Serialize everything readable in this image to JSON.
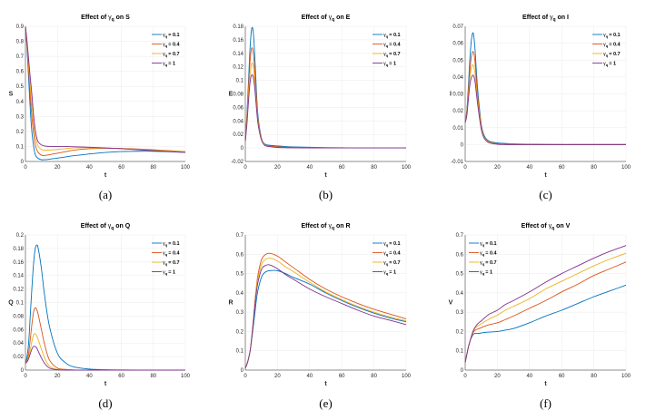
{
  "chart_data": [
    {
      "type": "line",
      "caption": "(a)",
      "title_prefix": "Effect of ",
      "symbol": "γ",
      "subscript": "q",
      "title_suffix": " on S",
      "xlabel": "t",
      "ylabel": "S",
      "xlim": [
        0,
        100
      ],
      "ylim": [
        0,
        0.9
      ],
      "xticks": [
        "0",
        "20",
        "40",
        "60",
        "80",
        "100"
      ],
      "yticks": [
        "0",
        "0.1",
        "0.2",
        "0.3",
        "0.4",
        "0.5",
        "0.6",
        "0.7",
        "0.8",
        "0.9"
      ],
      "grid": true,
      "legend_position": "top-right",
      "x": [
        0,
        1,
        2,
        3,
        4,
        5,
        6,
        7,
        8,
        10,
        12,
        15,
        20,
        25,
        30,
        40,
        50,
        60,
        70,
        80,
        90,
        100
      ],
      "series": [
        {
          "name": "= 0.1",
          "values": [
            0.9,
            0.75,
            0.55,
            0.35,
            0.2,
            0.11,
            0.05,
            0.03,
            0.02,
            0.012,
            0.012,
            0.015,
            0.022,
            0.03,
            0.038,
            0.05,
            0.06,
            0.066,
            0.068,
            0.068,
            0.065,
            0.06
          ]
        },
        {
          "name": "= 0.4",
          "values": [
            0.9,
            0.77,
            0.6,
            0.44,
            0.3,
            0.2,
            0.12,
            0.08,
            0.06,
            0.042,
            0.04,
            0.045,
            0.055,
            0.065,
            0.075,
            0.085,
            0.088,
            0.087,
            0.083,
            0.078,
            0.072,
            0.065
          ]
        },
        {
          "name": "= 0.7",
          "values": [
            0.9,
            0.79,
            0.65,
            0.5,
            0.38,
            0.26,
            0.17,
            0.13,
            0.1,
            0.08,
            0.075,
            0.076,
            0.08,
            0.085,
            0.09,
            0.092,
            0.09,
            0.085,
            0.08,
            0.075,
            0.07,
            0.063
          ]
        },
        {
          "name": "= 1",
          "values": [
            0.9,
            0.8,
            0.68,
            0.56,
            0.45,
            0.32,
            0.22,
            0.16,
            0.13,
            0.11,
            0.103,
            0.1,
            0.1,
            0.1,
            0.098,
            0.095,
            0.09,
            0.085,
            0.078,
            0.072,
            0.066,
            0.06
          ]
        }
      ]
    },
    {
      "type": "line",
      "caption": "(b)",
      "title_prefix": "Effect of ",
      "symbol": "γ",
      "subscript": "q",
      "title_suffix": " on E",
      "xlabel": "t",
      "ylabel": "E",
      "xlim": [
        0,
        100
      ],
      "ylim": [
        -0.02,
        0.18
      ],
      "xticks": [
        "0",
        "20",
        "40",
        "60",
        "80",
        "100"
      ],
      "yticks": [
        "-0.02",
        "0",
        "0.02",
        "0.04",
        "0.06",
        "0.08",
        "0.1",
        "0.12",
        "0.14",
        "0.16",
        "0.18"
      ],
      "grid": true,
      "legend_position": "top-right",
      "x": [
        0,
        1,
        2,
        3,
        4,
        5,
        6,
        7,
        8,
        10,
        12,
        15,
        20,
        25,
        30,
        40,
        50,
        60,
        70,
        80,
        90,
        100
      ],
      "series": [
        {
          "name": "= 0.1",
          "values": [
            0.01,
            0.05,
            0.1,
            0.15,
            0.177,
            0.17,
            0.13,
            0.08,
            0.045,
            0.015,
            0.006,
            0.004,
            0.003,
            0.002,
            0.0015,
            0.001,
            0.0005,
            0.0003,
            0.0002,
            0.0001,
            0,
            0
          ]
        },
        {
          "name": "= 0.4",
          "values": [
            0.01,
            0.045,
            0.09,
            0.13,
            0.148,
            0.14,
            0.11,
            0.07,
            0.04,
            0.014,
            0.005,
            0.003,
            0.002,
            0.001,
            0.001,
            0.0005,
            0.0002,
            0.0001,
            0,
            0,
            0,
            0
          ]
        },
        {
          "name": "= 0.7",
          "values": [
            0.01,
            0.04,
            0.08,
            0.11,
            0.125,
            0.12,
            0.095,
            0.062,
            0.037,
            0.013,
            0.005,
            0.002,
            0.001,
            0.0005,
            0.0003,
            0.0001,
            0,
            0,
            0,
            0,
            0,
            0
          ]
        },
        {
          "name": "= 1",
          "values": [
            0.01,
            0.035,
            0.07,
            0.098,
            0.108,
            0.104,
            0.085,
            0.057,
            0.034,
            0.012,
            0.004,
            0.002,
            0.0008,
            0.0004,
            0.0002,
            0,
            0,
            0,
            0,
            0,
            0,
            0
          ]
        }
      ]
    },
    {
      "type": "line",
      "caption": "(c)",
      "title_prefix": "Effect of ",
      "symbol": "γ",
      "subscript": "q",
      "title_suffix": " on I",
      "xlabel": "t",
      "ylabel": "I",
      "xlim": [
        0,
        100
      ],
      "ylim": [
        -0.01,
        0.07
      ],
      "xticks": [
        "0",
        "20",
        "40",
        "60",
        "80",
        "100"
      ],
      "yticks": [
        "-0.01",
        "0",
        "0.01",
        "0.02",
        "0.03",
        "0.04",
        "0.05",
        "0.06",
        "0.07"
      ],
      "grid": true,
      "legend_position": "top-right",
      "x": [
        0,
        1,
        2,
        3,
        4,
        5,
        6,
        7,
        8,
        10,
        12,
        15,
        20,
        25,
        30,
        40,
        50,
        60,
        70,
        80,
        90,
        100
      ],
      "series": [
        {
          "name": "= 0.1",
          "values": [
            0.013,
            0.02,
            0.035,
            0.052,
            0.063,
            0.066,
            0.058,
            0.043,
            0.03,
            0.012,
            0.005,
            0.002,
            0.001,
            0.0007,
            0.0004,
            0.0002,
            0.0001,
            0,
            0,
            0,
            0,
            0
          ]
        },
        {
          "name": "= 0.4",
          "values": [
            0.013,
            0.019,
            0.032,
            0.045,
            0.053,
            0.055,
            0.05,
            0.038,
            0.027,
            0.011,
            0.004,
            0.0015,
            0.0005,
            0.0003,
            0.0002,
            0.0001,
            0,
            0,
            0,
            0,
            0,
            0
          ]
        },
        {
          "name": "= 0.7",
          "values": [
            0.013,
            0.018,
            0.029,
            0.04,
            0.046,
            0.047,
            0.043,
            0.033,
            0.024,
            0.01,
            0.004,
            0.0013,
            0.0003,
            0.0001,
            0,
            0,
            0,
            0,
            0,
            0,
            0,
            0
          ]
        },
        {
          "name": "= 1",
          "values": [
            0.013,
            0.017,
            0.027,
            0.036,
            0.04,
            0.041,
            0.038,
            0.03,
            0.022,
            0.009,
            0.0035,
            0.001,
            0.0002,
            0,
            0,
            0,
            0,
            0,
            0,
            0,
            0,
            0
          ]
        }
      ]
    },
    {
      "type": "line",
      "caption": "(d)",
      "title_prefix": "Effect of ",
      "symbol": "γ",
      "subscript": "q",
      "title_suffix": " on Q",
      "xlabel": "t",
      "ylabel": "Q",
      "xlim": [
        0,
        100
      ],
      "ylim": [
        0,
        0.2
      ],
      "xticks": [
        "0",
        "20",
        "40",
        "60",
        "80",
        "100"
      ],
      "yticks": [
        "0",
        "0.02",
        "0.04",
        "0.06",
        "0.08",
        "0.1",
        "0.12",
        "0.14",
        "0.16",
        "0.18",
        "0.2"
      ],
      "grid": true,
      "legend_position": "top-right",
      "x": [
        0,
        1,
        2,
        3,
        4,
        5,
        6,
        7,
        8,
        10,
        12,
        15,
        20,
        25,
        30,
        40,
        50,
        60,
        70,
        80,
        90,
        100
      ],
      "series": [
        {
          "name": "= 0.1",
          "values": [
            0.01,
            0.02,
            0.04,
            0.08,
            0.12,
            0.155,
            0.178,
            0.185,
            0.18,
            0.15,
            0.11,
            0.065,
            0.025,
            0.011,
            0.005,
            0.0015,
            0.0005,
            0.0002,
            0,
            0,
            0,
            0
          ]
        },
        {
          "name": "= 0.4",
          "values": [
            0.01,
            0.015,
            0.025,
            0.045,
            0.067,
            0.085,
            0.092,
            0.09,
            0.082,
            0.06,
            0.038,
            0.015,
            0.003,
            0.001,
            0.0003,
            0,
            0,
            0,
            0,
            0,
            0,
            0
          ]
        },
        {
          "name": "= 0.7",
          "values": [
            0.01,
            0.013,
            0.02,
            0.03,
            0.042,
            0.052,
            0.054,
            0.051,
            0.045,
            0.031,
            0.018,
            0.006,
            0.001,
            0.0003,
            0,
            0,
            0,
            0,
            0,
            0,
            0,
            0
          ]
        },
        {
          "name": "= 1",
          "values": [
            0.01,
            0.012,
            0.017,
            0.024,
            0.031,
            0.035,
            0.035,
            0.033,
            0.028,
            0.018,
            0.01,
            0.003,
            0.0005,
            0,
            0,
            0,
            0,
            0,
            0,
            0,
            0,
            0
          ]
        }
      ]
    },
    {
      "type": "line",
      "caption": "(e)",
      "title_prefix": "Effect of ",
      "symbol": "γ",
      "subscript": "q",
      "title_suffix": " on R",
      "xlabel": "t",
      "ylabel": "R",
      "xlim": [
        0,
        100
      ],
      "ylim": [
        0,
        0.7
      ],
      "xticks": [
        "0",
        "20",
        "40",
        "60",
        "80",
        "100"
      ],
      "yticks": [
        "0",
        "0.1",
        "0.2",
        "0.3",
        "0.4",
        "0.5",
        "0.6",
        "0.7"
      ],
      "grid": true,
      "legend_position": "top-right",
      "x": [
        0,
        1,
        2,
        3,
        4,
        5,
        6,
        7,
        8,
        10,
        12,
        15,
        20,
        25,
        30,
        40,
        50,
        60,
        70,
        80,
        90,
        100
      ],
      "series": [
        {
          "name": "= 0.1",
          "values": [
            0.01,
            0.03,
            0.06,
            0.1,
            0.16,
            0.23,
            0.3,
            0.37,
            0.42,
            0.48,
            0.505,
            0.515,
            0.515,
            0.5,
            0.48,
            0.445,
            0.4,
            0.36,
            0.325,
            0.295,
            0.27,
            0.25
          ]
        },
        {
          "name": "= 0.4",
          "values": [
            0.01,
            0.03,
            0.06,
            0.1,
            0.17,
            0.26,
            0.36,
            0.44,
            0.5,
            0.57,
            0.595,
            0.605,
            0.59,
            0.56,
            0.53,
            0.47,
            0.42,
            0.38,
            0.345,
            0.315,
            0.29,
            0.265
          ]
        },
        {
          "name": "= 0.7",
          "values": [
            0.01,
            0.03,
            0.06,
            0.1,
            0.17,
            0.26,
            0.35,
            0.43,
            0.48,
            0.545,
            0.57,
            0.58,
            0.565,
            0.535,
            0.51,
            0.455,
            0.405,
            0.365,
            0.33,
            0.3,
            0.275,
            0.255
          ]
        },
        {
          "name": "= 1",
          "values": [
            0.01,
            0.03,
            0.06,
            0.1,
            0.17,
            0.25,
            0.34,
            0.41,
            0.46,
            0.52,
            0.54,
            0.545,
            0.525,
            0.495,
            0.47,
            0.42,
            0.38,
            0.345,
            0.31,
            0.28,
            0.258,
            0.236
          ]
        }
      ]
    },
    {
      "type": "line",
      "caption": "(f)",
      "title_prefix": "Effect of ",
      "symbol": "γ",
      "subscript": "q",
      "title_suffix": " on V",
      "xlabel": "t",
      "ylabel": "V",
      "xlim": [
        0,
        100
      ],
      "ylim": [
        0,
        0.7
      ],
      "xticks": [
        "0",
        "20",
        "40",
        "60",
        "80",
        "100"
      ],
      "yticks": [
        "0",
        "0.1",
        "0.2",
        "0.3",
        "0.4",
        "0.5",
        "0.6",
        "0.7"
      ],
      "grid": true,
      "legend_position": "top-left",
      "x": [
        0,
        1,
        2,
        3,
        4,
        5,
        6,
        7,
        8,
        10,
        12,
        15,
        20,
        25,
        30,
        40,
        50,
        60,
        70,
        80,
        90,
        100
      ],
      "series": [
        {
          "name": "= 0.1",
          "values": [
            0.04,
            0.08,
            0.12,
            0.15,
            0.17,
            0.185,
            0.19,
            0.19,
            0.19,
            0.192,
            0.195,
            0.197,
            0.2,
            0.207,
            0.215,
            0.245,
            0.28,
            0.31,
            0.345,
            0.38,
            0.41,
            0.44
          ]
        },
        {
          "name": "= 0.4",
          "values": [
            0.04,
            0.08,
            0.12,
            0.15,
            0.175,
            0.195,
            0.205,
            0.21,
            0.213,
            0.22,
            0.227,
            0.235,
            0.245,
            0.262,
            0.28,
            0.32,
            0.36,
            0.405,
            0.445,
            0.49,
            0.525,
            0.56
          ]
        },
        {
          "name": "= 0.7",
          "values": [
            0.04,
            0.08,
            0.12,
            0.15,
            0.178,
            0.2,
            0.215,
            0.223,
            0.23,
            0.24,
            0.25,
            0.265,
            0.285,
            0.31,
            0.33,
            0.37,
            0.42,
            0.46,
            0.5,
            0.54,
            0.575,
            0.605
          ]
        },
        {
          "name": "= 1",
          "values": [
            0.04,
            0.08,
            0.12,
            0.15,
            0.18,
            0.205,
            0.22,
            0.232,
            0.242,
            0.255,
            0.27,
            0.29,
            0.31,
            0.34,
            0.36,
            0.405,
            0.455,
            0.5,
            0.54,
            0.58,
            0.615,
            0.645
          ]
        }
      ]
    }
  ],
  "colors": [
    "#0072BD",
    "#D95319",
    "#EDB120",
    "#7E2F8E"
  ]
}
